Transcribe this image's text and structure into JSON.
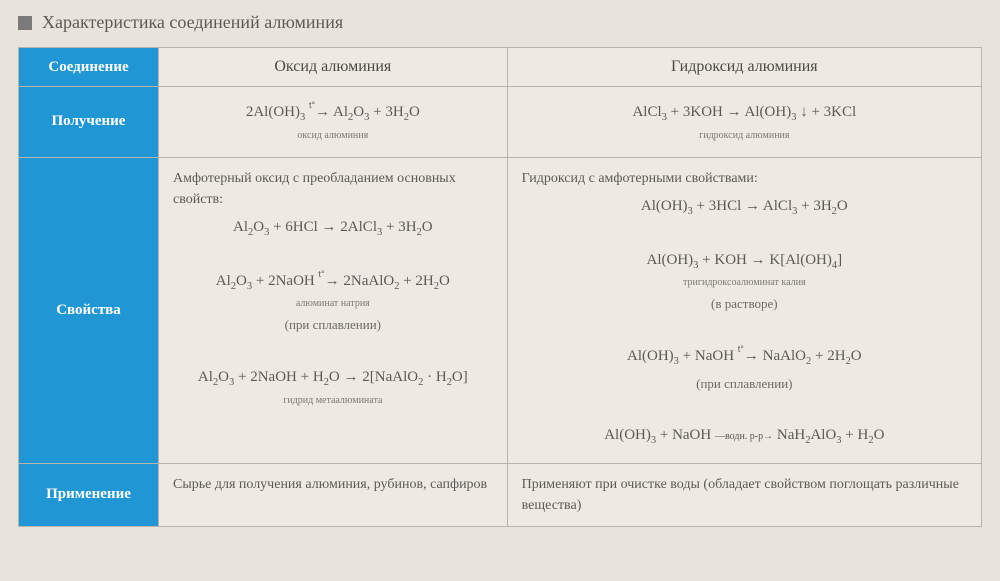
{
  "title": "Характеристика соединений алюминия",
  "table": {
    "header": {
      "rowLabel": "Соединение",
      "col1": "Оксид алюминия",
      "col2": "Гидроксид алюминия"
    },
    "rows": [
      {
        "label": "Получение",
        "col1": {
          "formula": "2Al(OH)₃ →(t°) Al₂O₃ + 3H₂O",
          "subLabel": "оксид алюминия"
        },
        "col2": {
          "formula": "AlCl₃ + 3KOH → Al(OH)₃ ↓ + 3KCl",
          "subLabel": "гидроксид алюминия"
        }
      },
      {
        "label": "Свойства",
        "col1": {
          "desc": "Амфотерный оксид с преобладанием основных свойств:",
          "formulas": [
            {
              "eq": "Al₂O₃ + 6HCl → 2AlCl₃ + 3H₂O",
              "sub": ""
            },
            {
              "eq": "Al₂O₃ + 2NaOH →(t°) 2NaAlO₂ + 2H₂O",
              "sub": "алюминат натрия",
              "note": "(при сплавлении)"
            },
            {
              "eq": "Al₂O₃ + 2NaOH + H₂O → 2[NaAlO₂ · H₂O]",
              "sub": "гидрид метаалюмината"
            }
          ]
        },
        "col2": {
          "desc": "Гидроксид с амфотерными свойствами:",
          "formulas": [
            {
              "eq": "Al(OH)₃ + 3HCl → AlCl₃ + 3H₂O",
              "sub": ""
            },
            {
              "eq": "Al(OH)₃ + KOH → K[Al(OH)₄]",
              "sub": "тригидроксоалюминат калия",
              "note": "(в растворе)"
            },
            {
              "eq": "Al(OH)₃ + NaOH →(t°) NaAlO₂ + 2H₂O",
              "sub": "",
              "note": "(при сплавлении)"
            },
            {
              "eq": "Al(OH)₃ + NaOH —(водн. р-р)→ NaH₂AlO₃ + H₂O",
              "sub": ""
            }
          ]
        }
      },
      {
        "label": "Применение",
        "col1": {
          "text": "Сырье для получения алюминия, рубинов, сапфиров"
        },
        "col2": {
          "text": "Применяют при очистке воды (обладает свойством поглощать различные вещества)"
        }
      }
    ]
  },
  "colors": {
    "headerBg": "#2196d4",
    "headerText": "#ffffff",
    "pageBg": "#e8e4dc",
    "cellBg": "#eeeae2",
    "border": "#b8b4aa",
    "text": "#5a5a56"
  },
  "fonts": {
    "title": 18,
    "header": 15,
    "body": 14,
    "formula": 15,
    "subLabel": 10
  }
}
